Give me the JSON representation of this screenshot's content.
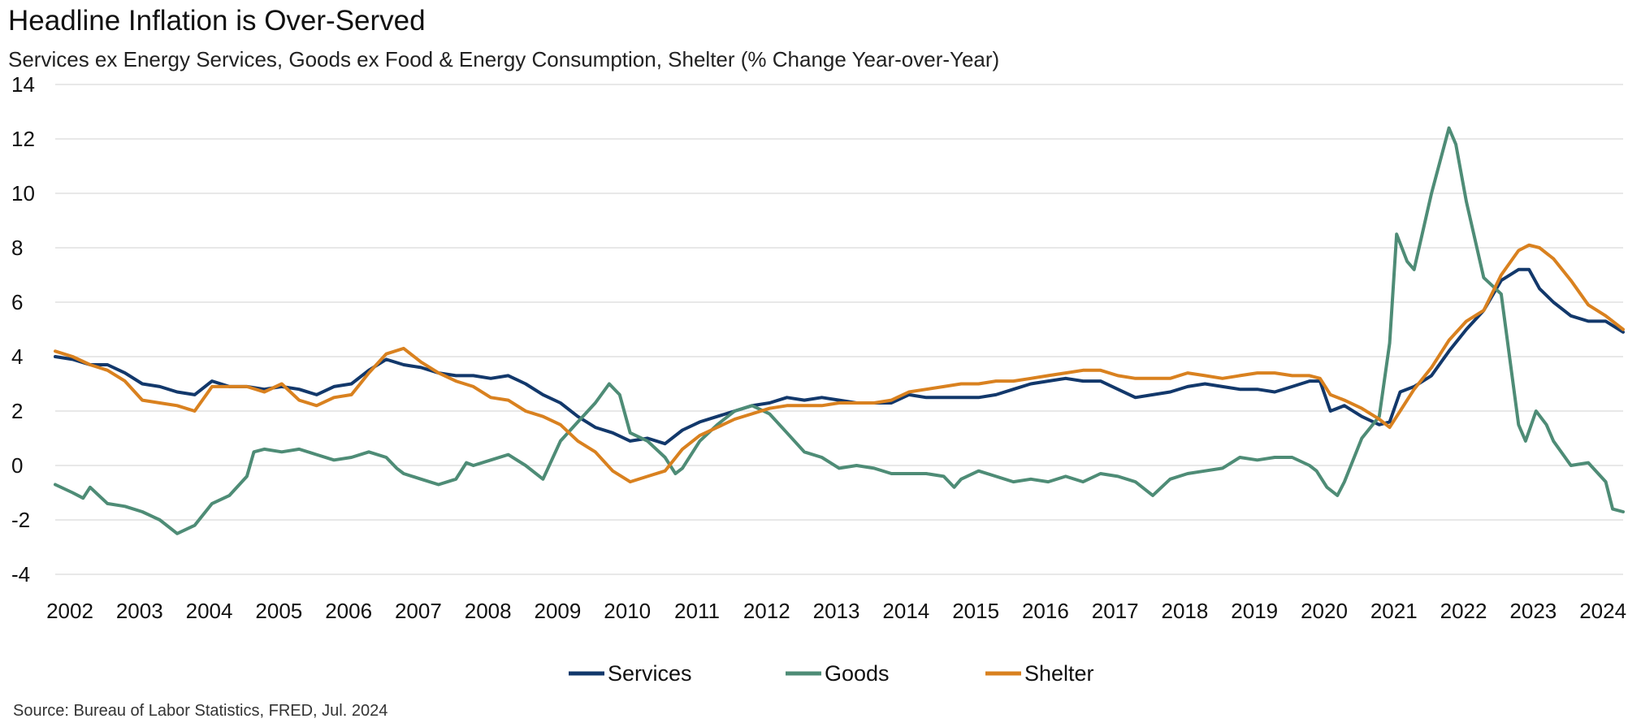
{
  "header": {
    "title": "Headline Inflation is Over-Served",
    "subtitle": "Services ex Energy Services, Goods ex Food & Energy Consumption, Shelter (% Change Year-over-Year)"
  },
  "footer": {
    "source": "Source: Bureau of Labor Statistics, FRED, Jul. 2024"
  },
  "chart_data": {
    "type": "line",
    "title": "Headline Inflation is Over-Served",
    "xlabel": "",
    "ylabel": "% Change Year-over-Year",
    "xlim": [
      2002,
      2024.5
    ],
    "ylim": [
      -4,
      14
    ],
    "yticks": [
      -4,
      -2,
      0,
      2,
      4,
      6,
      8,
      10,
      12,
      14
    ],
    "ytick_labels": [
      "-4",
      "-2",
      "0",
      "2",
      "4",
      "6",
      "8",
      "10",
      "12",
      "14"
    ],
    "xticks": [
      2002,
      2003,
      2004,
      2005,
      2006,
      2007,
      2008,
      2009,
      2010,
      2011,
      2012,
      2013,
      2014,
      2015,
      2016,
      2017,
      2018,
      2019,
      2020,
      2021,
      2022,
      2023,
      2024
    ],
    "xtick_labels": [
      "2002",
      "2003",
      "2004",
      "2005",
      "2006",
      "2007",
      "2008",
      "2009",
      "2010",
      "2011",
      "2012",
      "2013",
      "2014",
      "2015",
      "2016",
      "2017",
      "2018",
      "2019",
      "2020",
      "2021",
      "2022",
      "2023",
      "2024"
    ],
    "grid": "horizontal",
    "legend_position": "bottom-center",
    "series": [
      {
        "name": "Services",
        "color": "#12386b",
        "points": [
          [
            2002.0,
            4.0
          ],
          [
            2002.25,
            3.9
          ],
          [
            2002.5,
            3.7
          ],
          [
            2002.75,
            3.7
          ],
          [
            2003.0,
            3.4
          ],
          [
            2003.25,
            3.0
          ],
          [
            2003.5,
            2.9
          ],
          [
            2003.75,
            2.7
          ],
          [
            2004.0,
            2.6
          ],
          [
            2004.25,
            3.1
          ],
          [
            2004.5,
            2.9
          ],
          [
            2004.75,
            2.9
          ],
          [
            2005.0,
            2.8
          ],
          [
            2005.25,
            2.9
          ],
          [
            2005.5,
            2.8
          ],
          [
            2005.75,
            2.6
          ],
          [
            2006.0,
            2.9
          ],
          [
            2006.25,
            3.0
          ],
          [
            2006.5,
            3.5
          ],
          [
            2006.75,
            3.9
          ],
          [
            2007.0,
            3.7
          ],
          [
            2007.25,
            3.6
          ],
          [
            2007.5,
            3.4
          ],
          [
            2007.75,
            3.3
          ],
          [
            2008.0,
            3.3
          ],
          [
            2008.25,
            3.2
          ],
          [
            2008.5,
            3.3
          ],
          [
            2008.75,
            3.0
          ],
          [
            2009.0,
            2.6
          ],
          [
            2009.25,
            2.3
          ],
          [
            2009.5,
            1.8
          ],
          [
            2009.75,
            1.4
          ],
          [
            2010.0,
            1.2
          ],
          [
            2010.25,
            0.9
          ],
          [
            2010.5,
            1.0
          ],
          [
            2010.75,
            0.8
          ],
          [
            2011.0,
            1.3
          ],
          [
            2011.25,
            1.6
          ],
          [
            2011.5,
            1.8
          ],
          [
            2011.75,
            2.0
          ],
          [
            2012.0,
            2.2
          ],
          [
            2012.25,
            2.3
          ],
          [
            2012.5,
            2.5
          ],
          [
            2012.75,
            2.4
          ],
          [
            2013.0,
            2.5
          ],
          [
            2013.25,
            2.4
          ],
          [
            2013.5,
            2.3
          ],
          [
            2013.75,
            2.3
          ],
          [
            2014.0,
            2.3
          ],
          [
            2014.25,
            2.6
          ],
          [
            2014.5,
            2.5
          ],
          [
            2014.75,
            2.5
          ],
          [
            2015.0,
            2.5
          ],
          [
            2015.25,
            2.5
          ],
          [
            2015.5,
            2.6
          ],
          [
            2015.75,
            2.8
          ],
          [
            2016.0,
            3.0
          ],
          [
            2016.25,
            3.1
          ],
          [
            2016.5,
            3.2
          ],
          [
            2016.75,
            3.1
          ],
          [
            2017.0,
            3.1
          ],
          [
            2017.25,
            2.8
          ],
          [
            2017.5,
            2.5
          ],
          [
            2017.75,
            2.6
          ],
          [
            2018.0,
            2.7
          ],
          [
            2018.25,
            2.9
          ],
          [
            2018.5,
            3.0
          ],
          [
            2018.75,
            2.9
          ],
          [
            2019.0,
            2.8
          ],
          [
            2019.25,
            2.8
          ],
          [
            2019.5,
            2.7
          ],
          [
            2019.75,
            2.9
          ],
          [
            2020.0,
            3.1
          ],
          [
            2020.15,
            3.1
          ],
          [
            2020.3,
            2.0
          ],
          [
            2020.5,
            2.2
          ],
          [
            2020.75,
            1.8
          ],
          [
            2021.0,
            1.5
          ],
          [
            2021.15,
            1.6
          ],
          [
            2021.3,
            2.7
          ],
          [
            2021.5,
            2.9
          ],
          [
            2021.75,
            3.3
          ],
          [
            2022.0,
            4.2
          ],
          [
            2022.25,
            5.0
          ],
          [
            2022.5,
            5.7
          ],
          [
            2022.75,
            6.8
          ],
          [
            2023.0,
            7.2
          ],
          [
            2023.15,
            7.2
          ],
          [
            2023.3,
            6.5
          ],
          [
            2023.5,
            6.0
          ],
          [
            2023.75,
            5.5
          ],
          [
            2024.0,
            5.3
          ],
          [
            2024.25,
            5.3
          ],
          [
            2024.5,
            4.9
          ]
        ]
      },
      {
        "name": "Goods",
        "color": "#4e8c76",
        "points": [
          [
            2002.0,
            -0.7
          ],
          [
            2002.25,
            -1.0
          ],
          [
            2002.4,
            -1.2
          ],
          [
            2002.5,
            -0.8
          ],
          [
            2002.75,
            -1.4
          ],
          [
            2003.0,
            -1.5
          ],
          [
            2003.25,
            -1.7
          ],
          [
            2003.5,
            -2.0
          ],
          [
            2003.75,
            -2.5
          ],
          [
            2004.0,
            -2.2
          ],
          [
            2004.25,
            -1.4
          ],
          [
            2004.5,
            -1.1
          ],
          [
            2004.75,
            -0.4
          ],
          [
            2004.85,
            0.5
          ],
          [
            2005.0,
            0.6
          ],
          [
            2005.25,
            0.5
          ],
          [
            2005.5,
            0.6
          ],
          [
            2005.75,
            0.4
          ],
          [
            2006.0,
            0.2
          ],
          [
            2006.25,
            0.3
          ],
          [
            2006.5,
            0.5
          ],
          [
            2006.75,
            0.3
          ],
          [
            2006.9,
            -0.1
          ],
          [
            2007.0,
            -0.3
          ],
          [
            2007.25,
            -0.5
          ],
          [
            2007.5,
            -0.7
          ],
          [
            2007.75,
            -0.5
          ],
          [
            2007.9,
            0.1
          ],
          [
            2008.0,
            0.0
          ],
          [
            2008.25,
            0.2
          ],
          [
            2008.5,
            0.4
          ],
          [
            2008.75,
            0.0
          ],
          [
            2009.0,
            -0.5
          ],
          [
            2009.25,
            0.9
          ],
          [
            2009.5,
            1.6
          ],
          [
            2009.75,
            2.3
          ],
          [
            2009.95,
            3.0
          ],
          [
            2010.1,
            2.6
          ],
          [
            2010.25,
            1.2
          ],
          [
            2010.5,
            0.9
          ],
          [
            2010.75,
            0.3
          ],
          [
            2010.9,
            -0.3
          ],
          [
            2011.0,
            -0.1
          ],
          [
            2011.25,
            0.9
          ],
          [
            2011.5,
            1.5
          ],
          [
            2011.75,
            2.0
          ],
          [
            2012.0,
            2.2
          ],
          [
            2012.25,
            1.9
          ],
          [
            2012.5,
            1.2
          ],
          [
            2012.75,
            0.5
          ],
          [
            2013.0,
            0.3
          ],
          [
            2013.25,
            -0.1
          ],
          [
            2013.5,
            0.0
          ],
          [
            2013.75,
            -0.1
          ],
          [
            2014.0,
            -0.3
          ],
          [
            2014.25,
            -0.3
          ],
          [
            2014.5,
            -0.3
          ],
          [
            2014.75,
            -0.4
          ],
          [
            2014.9,
            -0.8
          ],
          [
            2015.0,
            -0.5
          ],
          [
            2015.25,
            -0.2
          ],
          [
            2015.5,
            -0.4
          ],
          [
            2015.75,
            -0.6
          ],
          [
            2016.0,
            -0.5
          ],
          [
            2016.25,
            -0.6
          ],
          [
            2016.5,
            -0.4
          ],
          [
            2016.75,
            -0.6
          ],
          [
            2017.0,
            -0.3
          ],
          [
            2017.25,
            -0.4
          ],
          [
            2017.5,
            -0.6
          ],
          [
            2017.75,
            -1.1
          ],
          [
            2018.0,
            -0.5
          ],
          [
            2018.25,
            -0.3
          ],
          [
            2018.5,
            -0.2
          ],
          [
            2018.75,
            -0.1
          ],
          [
            2019.0,
            0.3
          ],
          [
            2019.25,
            0.2
          ],
          [
            2019.5,
            0.3
          ],
          [
            2019.75,
            0.3
          ],
          [
            2020.0,
            0.0
          ],
          [
            2020.1,
            -0.2
          ],
          [
            2020.25,
            -0.8
          ],
          [
            2020.4,
            -1.1
          ],
          [
            2020.5,
            -0.6
          ],
          [
            2020.75,
            1.0
          ],
          [
            2021.0,
            1.8
          ],
          [
            2021.15,
            4.5
          ],
          [
            2021.25,
            8.5
          ],
          [
            2021.4,
            7.5
          ],
          [
            2021.5,
            7.2
          ],
          [
            2021.75,
            10.0
          ],
          [
            2022.0,
            12.4
          ],
          [
            2022.1,
            11.8
          ],
          [
            2022.25,
            9.7
          ],
          [
            2022.5,
            6.9
          ],
          [
            2022.75,
            6.3
          ],
          [
            2023.0,
            1.5
          ],
          [
            2023.1,
            0.9
          ],
          [
            2023.25,
            2.0
          ],
          [
            2023.4,
            1.5
          ],
          [
            2023.5,
            0.9
          ],
          [
            2023.75,
            0.0
          ],
          [
            2024.0,
            0.1
          ],
          [
            2024.25,
            -0.6
          ],
          [
            2024.35,
            -1.6
          ],
          [
            2024.5,
            -1.7
          ]
        ]
      },
      {
        "name": "Shelter",
        "color": "#d9811f",
        "points": [
          [
            2002.0,
            4.2
          ],
          [
            2002.25,
            4.0
          ],
          [
            2002.5,
            3.7
          ],
          [
            2002.75,
            3.5
          ],
          [
            2003.0,
            3.1
          ],
          [
            2003.25,
            2.4
          ],
          [
            2003.5,
            2.3
          ],
          [
            2003.75,
            2.2
          ],
          [
            2004.0,
            2.0
          ],
          [
            2004.25,
            2.9
          ],
          [
            2004.5,
            2.9
          ],
          [
            2004.75,
            2.9
          ],
          [
            2005.0,
            2.7
          ],
          [
            2005.25,
            3.0
          ],
          [
            2005.5,
            2.4
          ],
          [
            2005.75,
            2.2
          ],
          [
            2006.0,
            2.5
          ],
          [
            2006.25,
            2.6
          ],
          [
            2006.5,
            3.4
          ],
          [
            2006.75,
            4.1
          ],
          [
            2007.0,
            4.3
          ],
          [
            2007.25,
            3.8
          ],
          [
            2007.5,
            3.4
          ],
          [
            2007.75,
            3.1
          ],
          [
            2008.0,
            2.9
          ],
          [
            2008.25,
            2.5
          ],
          [
            2008.5,
            2.4
          ],
          [
            2008.75,
            2.0
          ],
          [
            2009.0,
            1.8
          ],
          [
            2009.25,
            1.5
          ],
          [
            2009.5,
            0.9
          ],
          [
            2009.75,
            0.5
          ],
          [
            2010.0,
            -0.2
          ],
          [
            2010.25,
            -0.6
          ],
          [
            2010.5,
            -0.4
          ],
          [
            2010.75,
            -0.2
          ],
          [
            2011.0,
            0.6
          ],
          [
            2011.25,
            1.1
          ],
          [
            2011.5,
            1.4
          ],
          [
            2011.75,
            1.7
          ],
          [
            2012.0,
            1.9
          ],
          [
            2012.25,
            2.1
          ],
          [
            2012.5,
            2.2
          ],
          [
            2012.75,
            2.2
          ],
          [
            2013.0,
            2.2
          ],
          [
            2013.25,
            2.3
          ],
          [
            2013.5,
            2.3
          ],
          [
            2013.75,
            2.3
          ],
          [
            2014.0,
            2.4
          ],
          [
            2014.25,
            2.7
          ],
          [
            2014.5,
            2.8
          ],
          [
            2014.75,
            2.9
          ],
          [
            2015.0,
            3.0
          ],
          [
            2015.25,
            3.0
          ],
          [
            2015.5,
            3.1
          ],
          [
            2015.75,
            3.1
          ],
          [
            2016.0,
            3.2
          ],
          [
            2016.25,
            3.3
          ],
          [
            2016.5,
            3.4
          ],
          [
            2016.75,
            3.5
          ],
          [
            2017.0,
            3.5
          ],
          [
            2017.25,
            3.3
          ],
          [
            2017.5,
            3.2
          ],
          [
            2017.75,
            3.2
          ],
          [
            2018.0,
            3.2
          ],
          [
            2018.25,
            3.4
          ],
          [
            2018.5,
            3.3
          ],
          [
            2018.75,
            3.2
          ],
          [
            2019.0,
            3.3
          ],
          [
            2019.25,
            3.4
          ],
          [
            2019.5,
            3.4
          ],
          [
            2019.75,
            3.3
          ],
          [
            2020.0,
            3.3
          ],
          [
            2020.15,
            3.2
          ],
          [
            2020.3,
            2.6
          ],
          [
            2020.5,
            2.4
          ],
          [
            2020.75,
            2.1
          ],
          [
            2021.0,
            1.7
          ],
          [
            2021.15,
            1.4
          ],
          [
            2021.3,
            2.0
          ],
          [
            2021.5,
            2.8
          ],
          [
            2021.75,
            3.6
          ],
          [
            2022.0,
            4.6
          ],
          [
            2022.25,
            5.3
          ],
          [
            2022.5,
            5.7
          ],
          [
            2022.75,
            7.0
          ],
          [
            2023.0,
            7.9
          ],
          [
            2023.15,
            8.1
          ],
          [
            2023.3,
            8.0
          ],
          [
            2023.5,
            7.6
          ],
          [
            2023.75,
            6.8
          ],
          [
            2024.0,
            5.9
          ],
          [
            2024.25,
            5.5
          ],
          [
            2024.5,
            5.0
          ]
        ]
      }
    ]
  }
}
